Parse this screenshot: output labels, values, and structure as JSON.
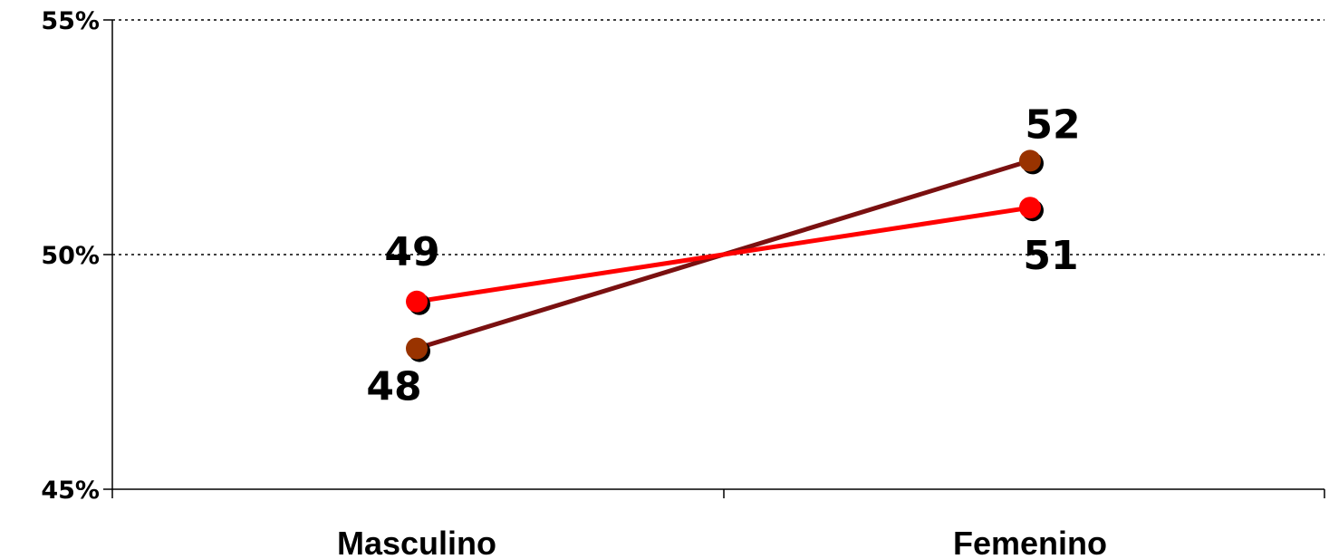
{
  "chart_data": {
    "type": "line",
    "categories": [
      "Masculino",
      "Femenino"
    ],
    "series": [
      {
        "values": [
          49,
          51
        ],
        "color": "#ff0000",
        "data_labels": [
          "49",
          "51"
        ]
      },
      {
        "values": [
          48,
          52
        ],
        "color": "#7a1010",
        "marker_color": "#993300",
        "data_labels": [
          "48",
          "52"
        ]
      }
    ],
    "y_ticks": [
      45,
      50,
      55
    ],
    "y_tick_labels": [
      "45%",
      "50%",
      "55%"
    ],
    "ylim": [
      45,
      55
    ],
    "grid": "dotted horizontal at 50% and 55%",
    "legend": "none",
    "title": "",
    "xlabel": "",
    "ylabel": ""
  }
}
